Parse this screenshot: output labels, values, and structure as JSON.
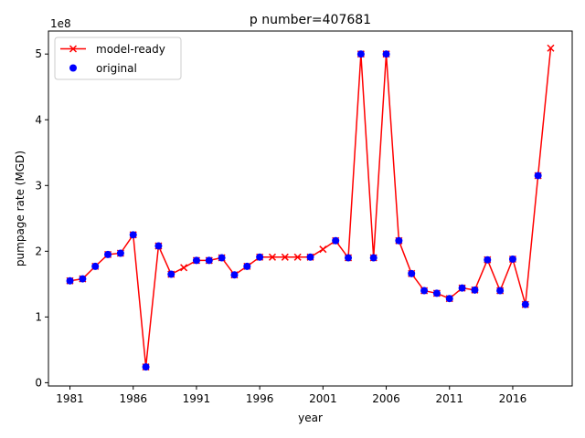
{
  "chart_data": {
    "type": "line",
    "title": "p number=407681",
    "xlabel": "year",
    "ylabel": "pumpage rate (MGD)",
    "y_offset_label": "1e8",
    "xlim": [
      1979.3,
      2020.7
    ],
    "ylim": [
      -0.05,
      5.35
    ],
    "y_scale_note": "values in units of 1e8",
    "x_ticks": [
      1981,
      1986,
      1991,
      1996,
      2001,
      2006,
      2011,
      2016
    ],
    "y_ticks": [
      0,
      1,
      2,
      3,
      4,
      5
    ],
    "grid": false,
    "legend": {
      "placement": "top-left",
      "entries": [
        "model-ready",
        "original"
      ]
    },
    "series": [
      {
        "name": "model-ready",
        "style": "line-x",
        "color": "#ff0000",
        "x": [
          1981,
          1982,
          1983,
          1984,
          1985,
          1986,
          1987,
          1988,
          1989,
          1990,
          1991,
          1992,
          1993,
          1994,
          1995,
          1996,
          1997,
          1998,
          1999,
          2000,
          2001,
          2002,
          2003,
          2004,
          2005,
          2006,
          2007,
          2008,
          2009,
          2010,
          2011,
          2012,
          2013,
          2014,
          2015,
          2016,
          2017,
          2018,
          2019
        ],
        "y": [
          1.55,
          1.58,
          1.77,
          1.95,
          1.97,
          2.25,
          0.24,
          2.08,
          1.65,
          1.75,
          1.86,
          1.86,
          1.9,
          1.64,
          1.77,
          1.91,
          1.91,
          1.91,
          1.91,
          1.91,
          2.03,
          2.16,
          1.9,
          5.0,
          1.9,
          5.0,
          2.16,
          1.66,
          1.4,
          1.36,
          1.28,
          1.44,
          1.41,
          1.87,
          1.4,
          1.88,
          1.19,
          3.15,
          5.09
        ]
      },
      {
        "name": "original",
        "style": "dots",
        "color": "#0000ff",
        "x": [
          1981,
          1982,
          1983,
          1984,
          1985,
          1986,
          1987,
          1988,
          1989,
          1991,
          1992,
          1993,
          1994,
          1995,
          1996,
          2000,
          2002,
          2003,
          2004,
          2005,
          2006,
          2007,
          2008,
          2009,
          2010,
          2011,
          2012,
          2013,
          2014,
          2015,
          2016,
          2017,
          2018
        ],
        "y": [
          1.55,
          1.58,
          1.77,
          1.95,
          1.97,
          2.25,
          0.24,
          2.08,
          1.65,
          1.86,
          1.86,
          1.9,
          1.64,
          1.77,
          1.91,
          1.91,
          2.16,
          1.9,
          5.0,
          1.9,
          5.0,
          2.16,
          1.66,
          1.4,
          1.36,
          1.28,
          1.44,
          1.41,
          1.87,
          1.4,
          1.88,
          1.19,
          3.15
        ]
      }
    ]
  }
}
